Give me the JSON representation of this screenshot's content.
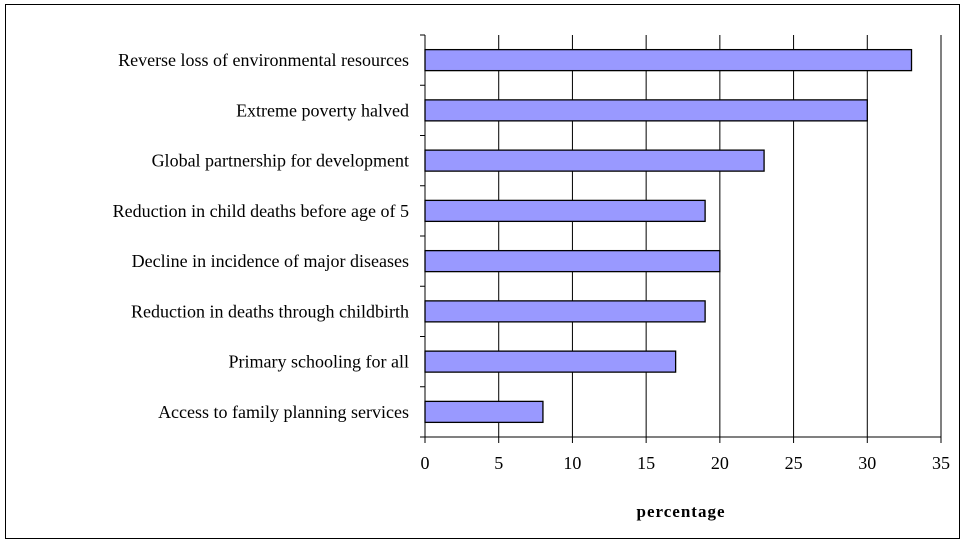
{
  "chart_data": {
    "type": "bar",
    "orientation": "horizontal",
    "title": "",
    "xlabel": "percentage",
    "ylabel": "",
    "xlim": [
      0,
      35
    ],
    "xticks": [
      0,
      5,
      10,
      15,
      20,
      25,
      30,
      35
    ],
    "grid": "vertical",
    "legend": "none",
    "bar_color": "#9999ff",
    "bar_edge_color": "#000000",
    "categories": [
      "Reverse loss of environmental resources",
      "Extreme poverty halved",
      "Global partnership for development",
      "Reduction in child deaths before age of 5",
      "Decline in incidence of major diseases",
      "Reduction in deaths through childbirth",
      "Primary schooling for all",
      "Access to family planning services"
    ],
    "values": [
      33,
      30,
      23,
      19,
      20,
      19,
      17,
      8
    ]
  }
}
